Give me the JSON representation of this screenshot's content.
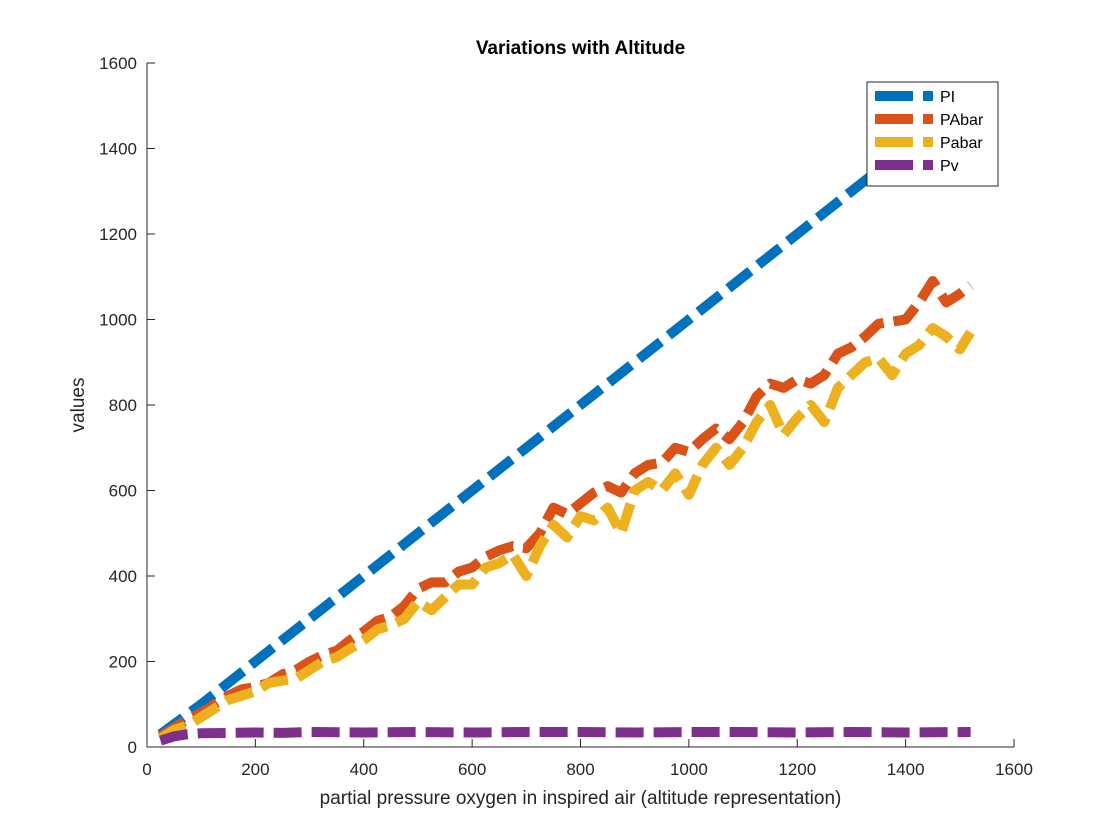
{
  "chart_data": {
    "type": "line",
    "title": "Variations with Altitude",
    "xlabel": "partial pressure oxygen in inspired air (altitude representation)",
    "ylabel": "values",
    "xlim": [
      0,
      1600
    ],
    "ylim": [
      0,
      1600
    ],
    "xticks": [
      "0",
      "200",
      "400",
      "600",
      "800",
      "1000",
      "1200",
      "1400",
      "1600"
    ],
    "yticks": [
      "0",
      "200",
      "400",
      "600",
      "800",
      "1000",
      "1200",
      "1400",
      "1600"
    ],
    "grid": false,
    "legend_position": "top-right",
    "line_style": "dashed",
    "series": [
      {
        "name": "PI",
        "color": "#0072BD",
        "x": [
          25,
          100,
          200,
          300,
          400,
          500,
          600,
          700,
          800,
          900,
          1000,
          1100,
          1200,
          1300,
          1400,
          1525
        ],
        "y": [
          30,
          100,
          200,
          300,
          400,
          500,
          600,
          700,
          800,
          900,
          1000,
          1100,
          1200,
          1300,
          1400,
          1520
        ]
      },
      {
        "name": "PAbar",
        "color": "#D95319",
        "x": [
          25,
          50,
          75,
          100,
          125,
          150,
          175,
          200,
          225,
          250,
          275,
          300,
          325,
          350,
          375,
          400,
          425,
          450,
          475,
          500,
          525,
          550,
          575,
          600,
          625,
          650,
          675,
          700,
          725,
          750,
          775,
          800,
          825,
          850,
          875,
          900,
          925,
          950,
          975,
          1000,
          1025,
          1050,
          1075,
          1100,
          1125,
          1150,
          1175,
          1200,
          1225,
          1250,
          1275,
          1300,
          1325,
          1350,
          1375,
          1400,
          1425,
          1450,
          1475,
          1500,
          1520
        ],
        "y": [
          25,
          45,
          65,
          80,
          100,
          120,
          135,
          140,
          150,
          170,
          180,
          200,
          215,
          225,
          250,
          270,
          295,
          305,
          330,
          370,
          385,
          385,
          410,
          420,
          445,
          460,
          470,
          465,
          500,
          560,
          545,
          570,
          595,
          610,
          595,
          640,
          660,
          665,
          700,
          690,
          720,
          745,
          720,
          760,
          820,
          850,
          840,
          860,
          850,
          870,
          920,
          935,
          960,
          990,
          995,
          1000,
          1040,
          1090,
          1040,
          1060,
          1080
        ]
      },
      {
        "name": "Pabar",
        "color": "#EDB120",
        "x": [
          25,
          50,
          75,
          100,
          125,
          150,
          175,
          200,
          225,
          250,
          275,
          300,
          325,
          350,
          375,
          400,
          425,
          450,
          475,
          500,
          525,
          550,
          575,
          600,
          625,
          650,
          675,
          700,
          725,
          750,
          775,
          800,
          825,
          850,
          875,
          900,
          925,
          950,
          975,
          1000,
          1025,
          1050,
          1075,
          1100,
          1125,
          1150,
          1175,
          1200,
          1225,
          1250,
          1275,
          1300,
          1325,
          1350,
          1375,
          1400,
          1425,
          1450,
          1475,
          1500,
          1520
        ],
        "y": [
          20,
          40,
          50,
          70,
          90,
          110,
          120,
          130,
          150,
          155,
          160,
          180,
          200,
          210,
          230,
          250,
          275,
          285,
          300,
          340,
          320,
          350,
          380,
          380,
          420,
          430,
          450,
          400,
          470,
          520,
          490,
          540,
          530,
          560,
          500,
          600,
          620,
          600,
          640,
          590,
          660,
          700,
          660,
          700,
          760,
          800,
          730,
          770,
          800,
          760,
          840,
          870,
          900,
          910,
          870,
          920,
          940,
          980,
          960,
          930,
          970
        ]
      },
      {
        "name": "Pv",
        "color": "#7E2F8E",
        "x": [
          25,
          50,
          75,
          100,
          150,
          200,
          250,
          300,
          400,
          500,
          600,
          700,
          800,
          900,
          1000,
          1100,
          1200,
          1300,
          1400,
          1520
        ],
        "y": [
          15,
          25,
          30,
          32,
          33,
          34,
          33,
          35,
          34,
          35,
          34,
          35,
          35,
          34,
          35,
          35,
          34,
          35,
          34,
          35
        ]
      }
    ]
  }
}
